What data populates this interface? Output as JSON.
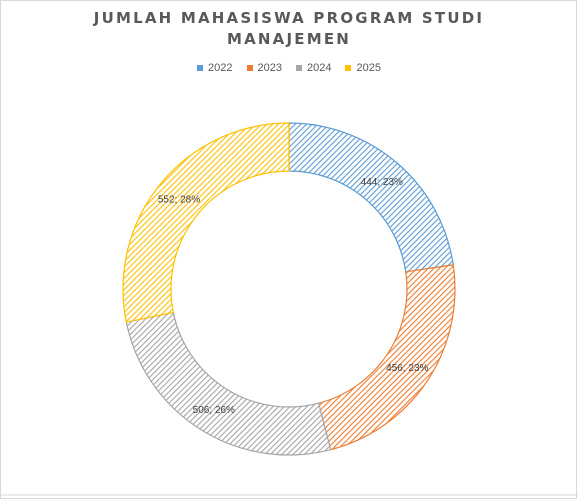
{
  "title_lines": [
    "JUMLAH MAHASISWA PROGRAM STUDI",
    "MANAJEMEN"
  ],
  "chart_data": {
    "type": "pie",
    "style": "doughnut",
    "title": "JUMLAH MAHASISWA PROGRAM STUDI MANAJEMEN",
    "categories": [
      "2022",
      "2023",
      "2024",
      "2025"
    ],
    "values": [
      444,
      456,
      506,
      552
    ],
    "percent_labels": [
      "23%",
      "23%",
      "26%",
      "28%"
    ],
    "data_labels": [
      "444; 23%",
      "456; 23%",
      "506; 26%",
      "552; 28%"
    ],
    "colors": [
      "#5b9bd5",
      "#ed7d31",
      "#a5a5a5",
      "#ffc000"
    ],
    "pattern": "diagonal-hatch",
    "legend_position": "top"
  }
}
